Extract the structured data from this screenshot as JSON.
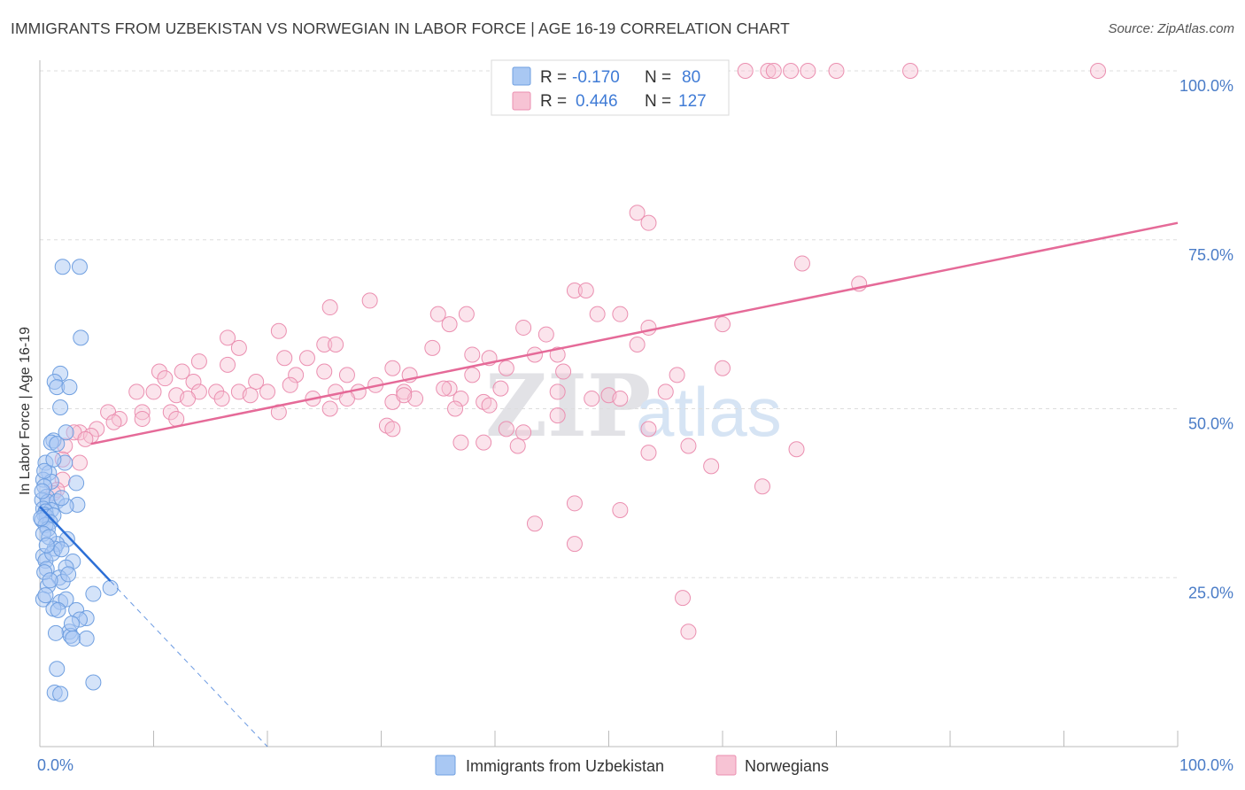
{
  "header": {
    "title": "IMMIGRANTS FROM UZBEKISTAN VS NORWEGIAN IN LABOR FORCE | AGE 16-19 CORRELATION CHART",
    "source": "Source: ZipAtlas.com"
  },
  "watermark": {
    "zip": "ZIP",
    "atlas": "atlas"
  },
  "colors": {
    "blue": "#6f9fe0",
    "blue_fill": "#a9c8f3",
    "blue_line": "#2c6fd6",
    "pink": "#eb8fb0",
    "pink_fill": "#f7c3d4",
    "pink_line": "#e56a98",
    "tick_text": "#4a7cc7",
    "grid": "#dddddd"
  },
  "legend": {
    "rows": [
      {
        "r_label": "R =",
        "r_value": "-0.170",
        "n_label": "N =",
        "n_value": "80"
      },
      {
        "r_label": "R =",
        "r_value": "0.446",
        "n_label": "N =",
        "n_value": "127"
      }
    ]
  },
  "chart_data": {
    "type": "scatter",
    "title": "IMMIGRANTS FROM UZBEKISTAN VS NORWEGIAN IN LABOR FORCE | AGE 16-19 CORRELATION CHART",
    "xlabel": "",
    "ylabel": "In Labor Force | Age 16-19",
    "xlim": [
      0,
      100
    ],
    "ylim": [
      0,
      100
    ],
    "x_tick_labels": [
      "0.0%",
      "100.0%"
    ],
    "y_ticks": [
      25,
      50,
      75,
      100
    ],
    "y_tick_labels": [
      "25.0%",
      "50.0%",
      "75.0%",
      "100.0%"
    ],
    "grid": true,
    "legend_position": "top-center",
    "series": [
      {
        "name": "Immigrants from Uzbekistan",
        "R": -0.17,
        "N": 80,
        "trend": {
          "x": [
            0,
            6.2
          ],
          "y": [
            35.5,
            24.5
          ]
        },
        "trend_extended": {
          "x": [
            6.2,
            20
          ],
          "y": [
            24.5,
            0
          ]
        },
        "points": [
          [
            2.0,
            71.0
          ],
          [
            3.5,
            71.0
          ],
          [
            3.6,
            60.5
          ],
          [
            1.8,
            55.2
          ],
          [
            1.3,
            54.0
          ],
          [
            1.5,
            53.2
          ],
          [
            2.6,
            53.2
          ],
          [
            1.8,
            50.2
          ],
          [
            2.3,
            46.5
          ],
          [
            1.2,
            45.3
          ],
          [
            1.0,
            45.0
          ],
          [
            1.5,
            44.8
          ],
          [
            0.5,
            42.0
          ],
          [
            2.2,
            42.0
          ],
          [
            0.8,
            40.5
          ],
          [
            0.3,
            39.5
          ],
          [
            1.0,
            39.2
          ],
          [
            3.2,
            39.0
          ],
          [
            0.4,
            38.5
          ],
          [
            0.6,
            37.0
          ],
          [
            0.2,
            36.5
          ],
          [
            0.7,
            36.2
          ],
          [
            1.5,
            36.3
          ],
          [
            3.3,
            35.8
          ],
          [
            2.3,
            35.6
          ],
          [
            0.3,
            35.2
          ],
          [
            1.0,
            35.0
          ],
          [
            0.5,
            34.8
          ],
          [
            0.4,
            34.3
          ],
          [
            0.6,
            34.0
          ],
          [
            1.2,
            34.2
          ],
          [
            0.2,
            33.5
          ],
          [
            0.9,
            33.2
          ],
          [
            0.5,
            32.8
          ],
          [
            0.7,
            32.2
          ],
          [
            2.4,
            30.7
          ],
          [
            1.5,
            30.0
          ],
          [
            1.3,
            29.3
          ],
          [
            0.3,
            28.2
          ],
          [
            0.5,
            27.5
          ],
          [
            1.1,
            28.6
          ],
          [
            2.9,
            27.4
          ],
          [
            2.3,
            26.5
          ],
          [
            0.6,
            26.3
          ],
          [
            0.4,
            25.8
          ],
          [
            1.7,
            25.0
          ],
          [
            2.0,
            24.4
          ],
          [
            0.7,
            23.8
          ],
          [
            6.2,
            23.5
          ],
          [
            4.7,
            22.6
          ],
          [
            0.3,
            21.8
          ],
          [
            1.8,
            21.4
          ],
          [
            2.3,
            21.8
          ],
          [
            1.2,
            20.4
          ],
          [
            3.2,
            20.2
          ],
          [
            1.6,
            20.2
          ],
          [
            4.1,
            19.0
          ],
          [
            3.5,
            18.8
          ],
          [
            2.6,
            17.0
          ],
          [
            1.4,
            16.8
          ],
          [
            2.7,
            16.4
          ],
          [
            2.9,
            16.0
          ],
          [
            4.1,
            16.0
          ],
          [
            1.5,
            11.5
          ],
          [
            4.7,
            9.5
          ],
          [
            1.3,
            8.0
          ],
          [
            1.8,
            7.8
          ],
          [
            0.3,
            31.5
          ],
          [
            0.8,
            31.0
          ],
          [
            1.9,
            29.2
          ],
          [
            0.9,
            24.6
          ],
          [
            2.5,
            25.5
          ],
          [
            0.2,
            37.8
          ],
          [
            0.4,
            40.8
          ],
          [
            1.9,
            36.8
          ],
          [
            0.1,
            33.8
          ],
          [
            0.6,
            29.8
          ],
          [
            1.2,
            42.5
          ],
          [
            2.8,
            18.2
          ],
          [
            0.5,
            22.4
          ]
        ]
      },
      {
        "name": "Norwegians",
        "R": 0.446,
        "N": 127,
        "trend": {
          "x": [
            4.5,
            100
          ],
          "y": [
            44.8,
            77.5
          ]
        },
        "points": [
          [
            62.0,
            100
          ],
          [
            64.0,
            100
          ],
          [
            64.5,
            100
          ],
          [
            66.0,
            100
          ],
          [
            67.5,
            100
          ],
          [
            70.0,
            100
          ],
          [
            76.5,
            100
          ],
          [
            93.0,
            100
          ],
          [
            52.5,
            79.0
          ],
          [
            53.5,
            77.5
          ],
          [
            67.0,
            71.5
          ],
          [
            72.0,
            68.5
          ],
          [
            47.0,
            67.5
          ],
          [
            48.0,
            67.5
          ],
          [
            29.0,
            66.0
          ],
          [
            25.5,
            65.0
          ],
          [
            35.0,
            64.0
          ],
          [
            37.5,
            64.0
          ],
          [
            36.0,
            62.5
          ],
          [
            49.0,
            64.0
          ],
          [
            51.0,
            64.0
          ],
          [
            60.0,
            62.5
          ],
          [
            53.5,
            62.0
          ],
          [
            42.5,
            62.0
          ],
          [
            21.0,
            61.5
          ],
          [
            16.5,
            60.5
          ],
          [
            44.5,
            61.0
          ],
          [
            25.0,
            59.5
          ],
          [
            26.0,
            59.5
          ],
          [
            17.5,
            59.0
          ],
          [
            34.5,
            59.0
          ],
          [
            52.5,
            59.5
          ],
          [
            38.0,
            58.0
          ],
          [
            39.5,
            57.5
          ],
          [
            43.5,
            58.0
          ],
          [
            45.5,
            58.0
          ],
          [
            21.5,
            57.5
          ],
          [
            23.5,
            57.5
          ],
          [
            14.0,
            57.0
          ],
          [
            16.5,
            56.5
          ],
          [
            10.5,
            55.5
          ],
          [
            12.5,
            55.5
          ],
          [
            22.5,
            55.0
          ],
          [
            25.0,
            55.5
          ],
          [
            27.0,
            55.0
          ],
          [
            31.0,
            56.0
          ],
          [
            32.5,
            55.0
          ],
          [
            38.0,
            55.0
          ],
          [
            46.0,
            55.5
          ],
          [
            56.0,
            55.0
          ],
          [
            11.0,
            54.5
          ],
          [
            13.5,
            54.0
          ],
          [
            19.0,
            54.0
          ],
          [
            22.0,
            53.5
          ],
          [
            29.5,
            53.5
          ],
          [
            36.0,
            53.0
          ],
          [
            8.5,
            52.5
          ],
          [
            10.0,
            52.5
          ],
          [
            12.0,
            52.0
          ],
          [
            14.0,
            52.5
          ],
          [
            15.5,
            52.5
          ],
          [
            17.5,
            52.5
          ],
          [
            20.0,
            52.5
          ],
          [
            26.0,
            52.5
          ],
          [
            28.0,
            52.5
          ],
          [
            32.0,
            52.5
          ],
          [
            35.5,
            53.0
          ],
          [
            40.5,
            53.0
          ],
          [
            45.5,
            52.5
          ],
          [
            13.0,
            51.5
          ],
          [
            16.0,
            51.5
          ],
          [
            18.5,
            52.0
          ],
          [
            24.0,
            51.5
          ],
          [
            27.0,
            51.5
          ],
          [
            31.0,
            51.0
          ],
          [
            33.0,
            51.5
          ],
          [
            37.0,
            51.5
          ],
          [
            39.0,
            51.0
          ],
          [
            48.5,
            51.5
          ],
          [
            50.0,
            52.0
          ],
          [
            9.0,
            49.5
          ],
          [
            11.5,
            49.5
          ],
          [
            21.0,
            49.5
          ],
          [
            25.5,
            50.0
          ],
          [
            36.5,
            50.0
          ],
          [
            39.5,
            50.5
          ],
          [
            51.0,
            51.5
          ],
          [
            6.0,
            49.5
          ],
          [
            7.0,
            48.5
          ],
          [
            9.0,
            48.5
          ],
          [
            12.0,
            48.5
          ],
          [
            6.5,
            48.0
          ],
          [
            5.0,
            47.0
          ],
          [
            3.5,
            46.5
          ],
          [
            4.5,
            46.0
          ],
          [
            3.0,
            46.5
          ],
          [
            30.5,
            47.5
          ],
          [
            31.0,
            47.0
          ],
          [
            41.0,
            47.0
          ],
          [
            53.5,
            47.0
          ],
          [
            4.0,
            45.5
          ],
          [
            42.5,
            46.5
          ],
          [
            2.2,
            44.5
          ],
          [
            37.0,
            45.0
          ],
          [
            39.0,
            45.0
          ],
          [
            42.0,
            44.5
          ],
          [
            53.5,
            43.5
          ],
          [
            57.0,
            44.5
          ],
          [
            66.5,
            44.0
          ],
          [
            45.5,
            49.0
          ],
          [
            55.0,
            52.5
          ],
          [
            60.0,
            56.0
          ],
          [
            2.0,
            42.5
          ],
          [
            3.5,
            42.0
          ],
          [
            2.0,
            39.5
          ],
          [
            1.5,
            38.0
          ],
          [
            1.2,
            37.5
          ],
          [
            59.0,
            41.5
          ],
          [
            63.5,
            38.5
          ],
          [
            47.0,
            36.0
          ],
          [
            51.0,
            35.0
          ],
          [
            43.5,
            33.0
          ],
          [
            47.0,
            30.0
          ],
          [
            56.5,
            22.0
          ],
          [
            57.0,
            17.0
          ],
          [
            32.0,
            52.0
          ],
          [
            41.0,
            56.0
          ]
        ]
      }
    ]
  },
  "bottom_legend": {
    "items": [
      {
        "label": "Immigrants from Uzbekistan"
      },
      {
        "label": "Norwegians"
      }
    ]
  }
}
